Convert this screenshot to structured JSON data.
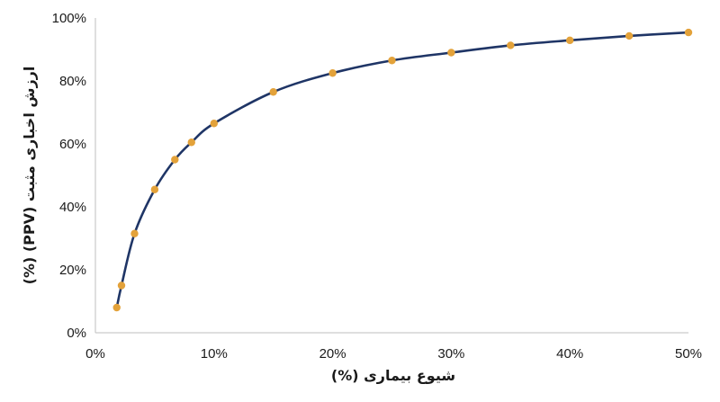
{
  "chart_data": {
    "type": "line",
    "title": "",
    "xlabel": "شیوع بیماری (%)",
    "ylabel": "ارزش اخباری مثبت (PPV) (%)",
    "xlim": [
      0,
      50
    ],
    "ylim": [
      0,
      100
    ],
    "x_ticks": [
      "0%",
      "10%",
      "20%",
      "30%",
      "40%",
      "50%"
    ],
    "y_ticks": [
      "0%",
      "20%",
      "40%",
      "60%",
      "80%",
      "100%"
    ],
    "grid": false,
    "legend": "none",
    "line_color": "#1f3566",
    "marker_color": "#e3a23a",
    "series": [
      {
        "x": [
          1.8,
          2.2,
          3.3,
          5.0,
          6.7,
          8.1,
          10,
          15,
          20,
          25,
          30,
          35,
          40,
          45,
          50
        ],
        "y": [
          8,
          15,
          31.5,
          45.5,
          55,
          60.5,
          66.5,
          76.5,
          82.5,
          86.5,
          89,
          91.3,
          92.9,
          94.3,
          95.4
        ]
      }
    ]
  }
}
